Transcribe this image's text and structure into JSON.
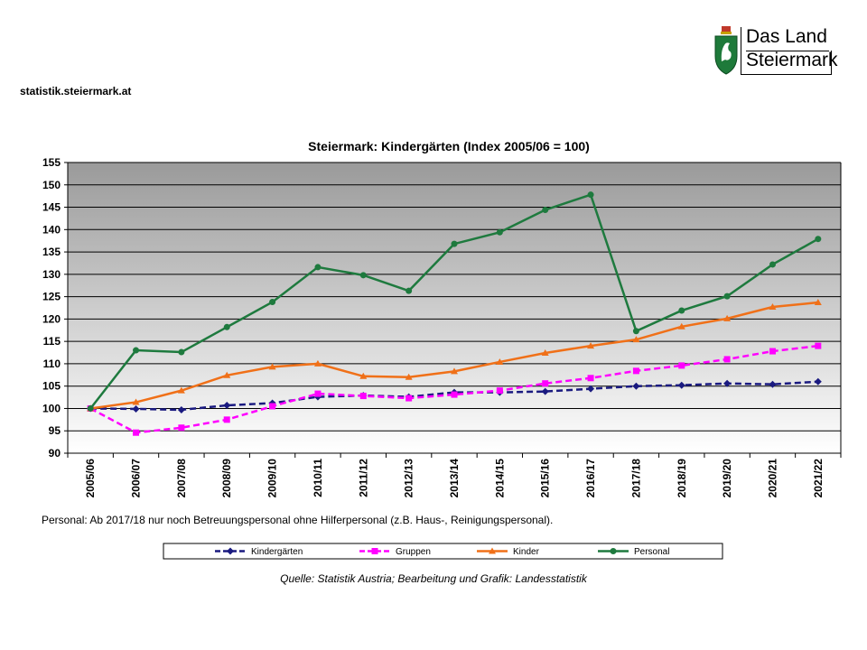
{
  "header": {
    "site": "statistik.steiermark.at",
    "logo_line1": "Das Land",
    "logo_line2": "Steiermark"
  },
  "footnote": "Personal: Ab 2017/18 nur noch Betreuungspersonal ohne Hilferpersonal (z.B. Haus-, Reinigungspersonal).",
  "source": "Quelle: Statistik Austria; Bearbeitung und Grafik: Landesstatistik",
  "colors": {
    "plot_bg_top": "#9a9a9a",
    "plot_bg_bottom": "#ffffff",
    "logo_green": "#1e7a3a",
    "logo_red": "#c0392b"
  },
  "chart_data": {
    "type": "line",
    "title": "Steiermark: Kindergärten (Index 2005/06 = 100)",
    "xlabel": "",
    "ylabel": "",
    "ylim": [
      90,
      155
    ],
    "yticks": [
      90,
      95,
      100,
      105,
      110,
      115,
      120,
      125,
      130,
      135,
      140,
      145,
      150,
      155
    ],
    "grid": true,
    "legend_position": "bottom",
    "categories": [
      "2005/06",
      "2006/07",
      "2007/08",
      "2008/09",
      "2009/10",
      "2010/11",
      "2011/12",
      "2012/13",
      "2013/14",
      "2014/15",
      "2015/16",
      "2016/17",
      "2017/18",
      "2018/19",
      "2019/20",
      "2020/21",
      "2021/22"
    ],
    "series": [
      {
        "name": "Kindergärten",
        "color": "#1a1a80",
        "dash": "7,4",
        "marker": "diamond",
        "values": [
          100.0,
          99.9,
          99.7,
          100.7,
          101.2,
          102.6,
          102.9,
          102.6,
          103.6,
          103.6,
          103.8,
          104.4,
          105.0,
          105.2,
          105.6,
          105.4,
          106.0
        ]
      },
      {
        "name": "Gruppen",
        "color": "#ff00ff",
        "dash": "7,4",
        "marker": "square",
        "values": [
          100.0,
          94.6,
          95.7,
          97.5,
          100.5,
          103.3,
          102.8,
          102.3,
          103.1,
          104.0,
          105.6,
          106.8,
          108.4,
          109.6,
          111.0,
          112.8,
          114.0
        ]
      },
      {
        "name": "Kinder",
        "color": "#f07018",
        "dash": "",
        "marker": "triangle",
        "values": [
          100.0,
          101.4,
          104.0,
          107.4,
          109.3,
          110.0,
          107.2,
          107.0,
          108.3,
          110.4,
          112.4,
          114.0,
          115.4,
          118.3,
          120.1,
          122.7,
          123.7
        ]
      },
      {
        "name": "Personal",
        "color": "#1e7a3e",
        "dash": "",
        "marker": "circle",
        "values": [
          100.0,
          113.0,
          112.6,
          118.2,
          123.8,
          131.6,
          129.8,
          126.3,
          136.8,
          139.4,
          144.4,
          147.8,
          117.3,
          121.9,
          125.1,
          132.2,
          137.9
        ]
      }
    ]
  }
}
